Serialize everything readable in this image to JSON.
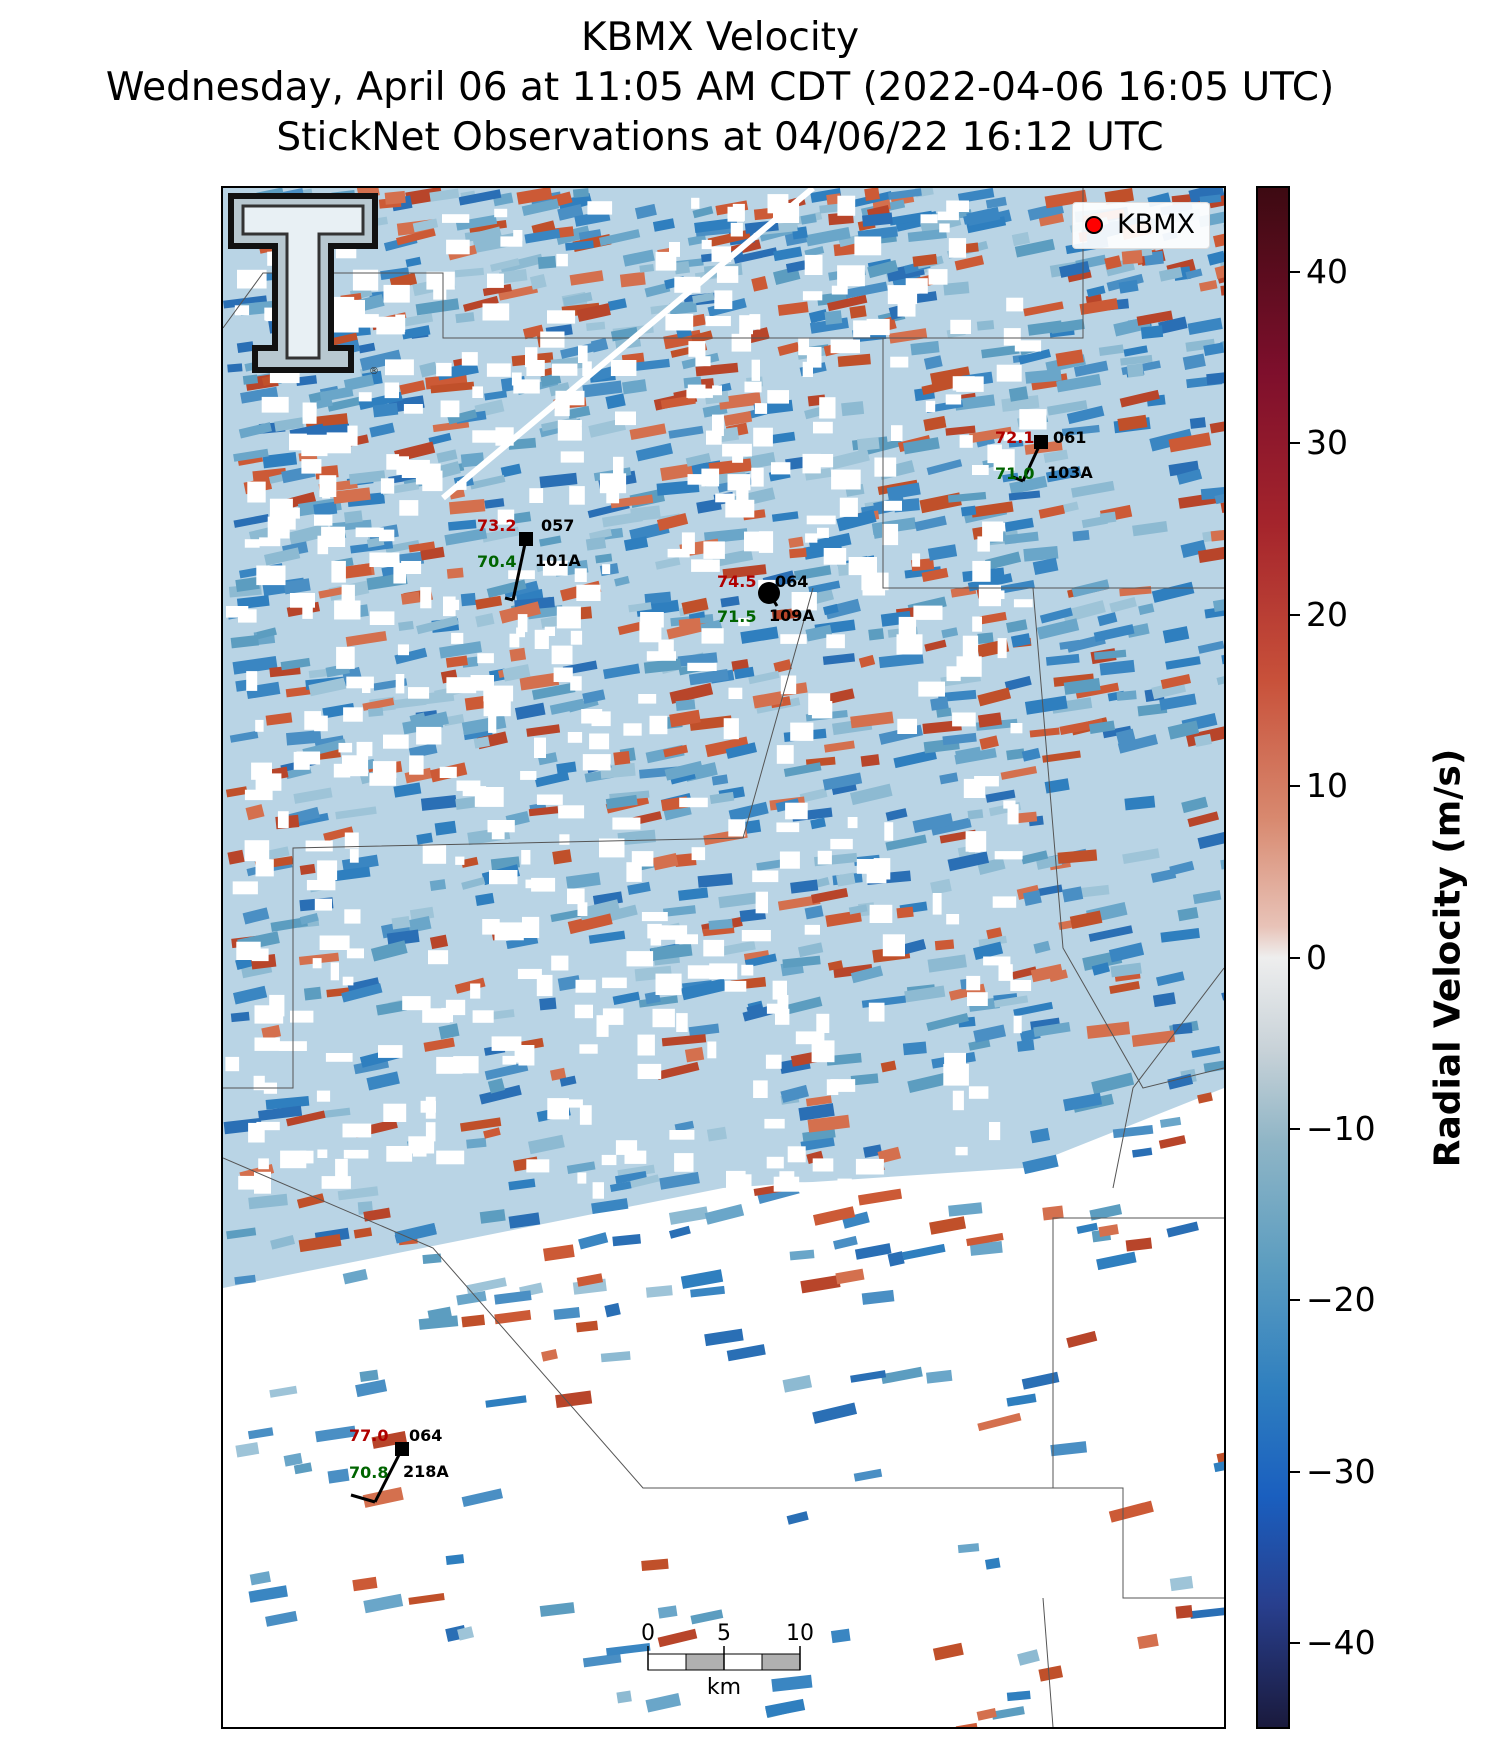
{
  "title": {
    "line1": "KBMX Velocity",
    "line2": "Wednesday, April 06 at 11:05 AM CDT (2022-04-06 16:05 UTC)",
    "line3": "StickNet Observations at 04/06/22 16:12 UTC"
  },
  "legend": {
    "label": "KBMX",
    "marker_color": "#ff0000"
  },
  "colorbar": {
    "title": "Radial Velocity (m/s)",
    "ticks": [
      "40",
      "30",
      "20",
      "10",
      "0",
      "−10",
      "−20",
      "−30",
      "−40"
    ],
    "range": [
      -45,
      45
    ]
  },
  "stations": [
    {
      "id": "101A",
      "temp": "73.2",
      "dew": "70.4",
      "pressure": "057"
    },
    {
      "id": "103A",
      "temp": "72.1",
      "dew": "71.0",
      "pressure": "061"
    },
    {
      "id": "109A",
      "temp": "74.5",
      "dew": "71.5",
      "pressure": "064"
    },
    {
      "id": "218A",
      "temp": "77.0",
      "dew": "70.8",
      "pressure": "064"
    }
  ],
  "scale_bar": {
    "labels": [
      "0",
      "5",
      "10"
    ],
    "unit": "km"
  },
  "colors": {
    "temp": "#b00000",
    "dew": "#006400",
    "outbound": "#c0502a",
    "inbound": "#2f7fbf"
  }
}
